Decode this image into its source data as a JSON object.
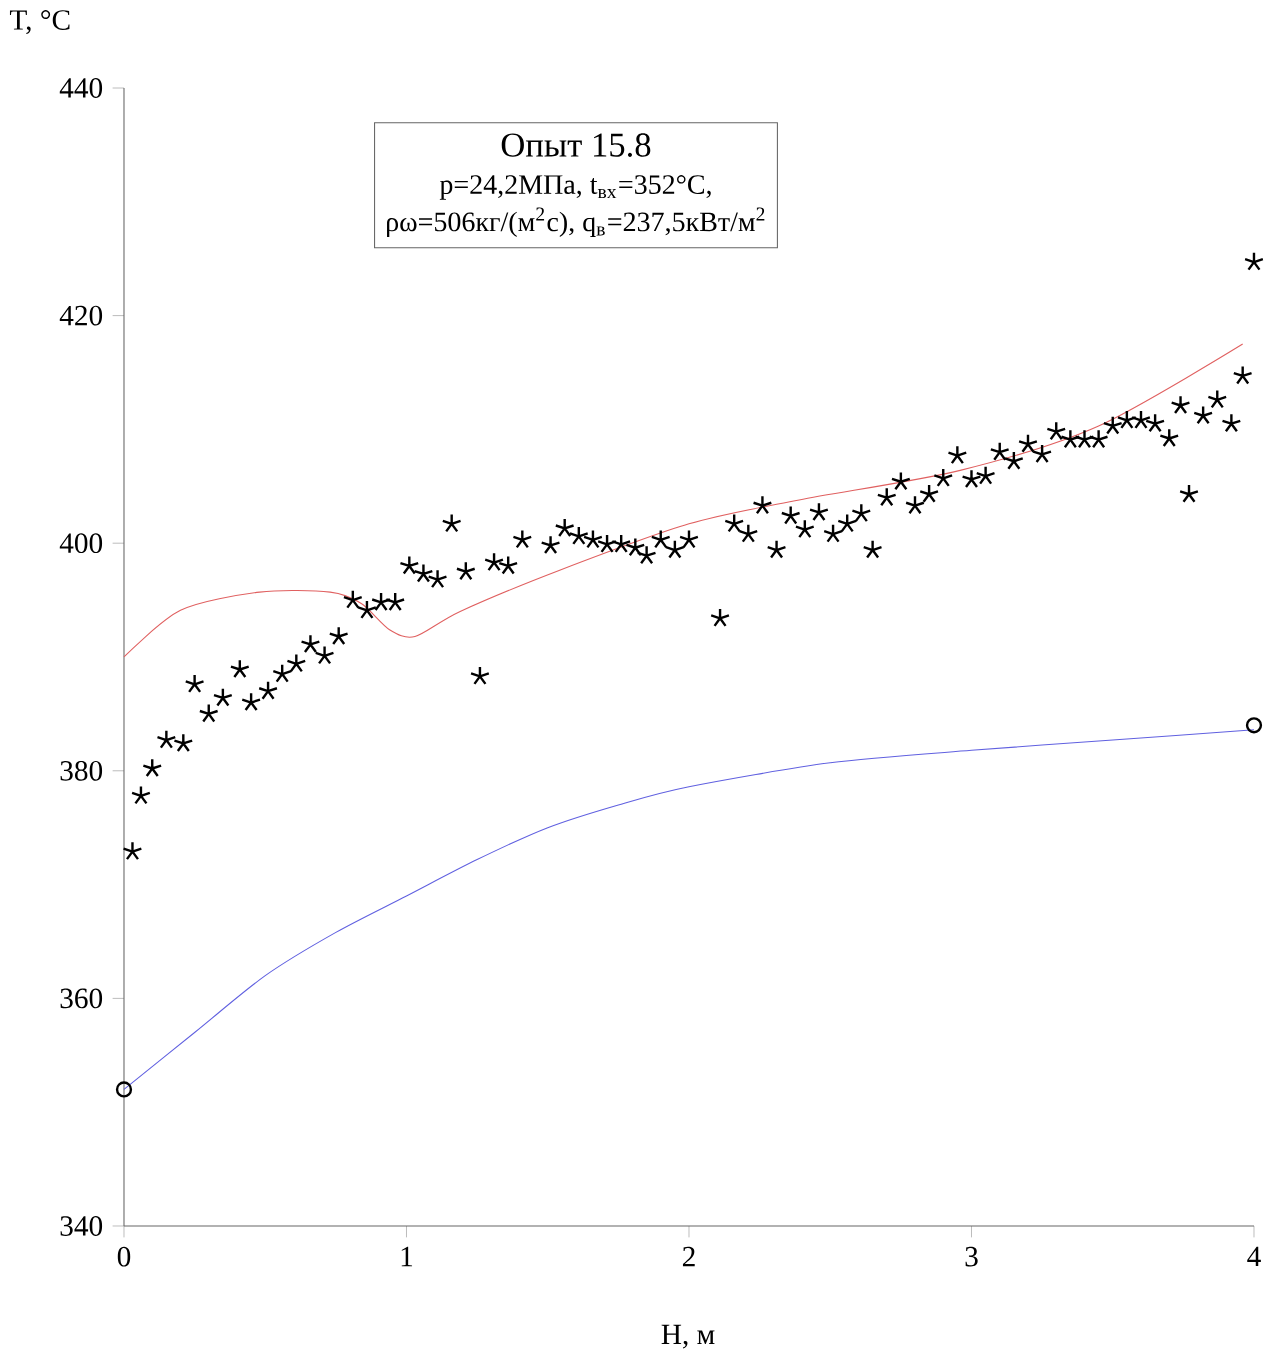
{
  "chart_data": {
    "type": "scatter",
    "title": "Опыт 15.8",
    "annotations": [
      "p=24,2МПа, t$_{вх}$=352°C,",
      "ρω=506кг/(м$^{2}$с), q$_{в}$=237,5кВт/м$^{2}$"
    ],
    "xlabel": "H, м",
    "ylabel": "T, °C",
    "xlim": [
      0,
      4
    ],
    "ylim": [
      340,
      440
    ],
    "xticks": [
      0,
      1,
      2,
      3,
      4
    ],
    "yticks": [
      340,
      360,
      380,
      400,
      420,
      440
    ],
    "series": [
      {
        "marker": "cross",
        "color": "#000000",
        "x": [
          0.03,
          0.06,
          0.1,
          0.15,
          0.21,
          0.25,
          0.3,
          0.35,
          0.41,
          0.45,
          0.51,
          0.56,
          0.61,
          0.66,
          0.71,
          0.76,
          0.81,
          0.86,
          0.91,
          0.96,
          1.01,
          1.06,
          1.11,
          1.16,
          1.21,
          1.26,
          1.31,
          1.36,
          1.41,
          1.51,
          1.56,
          1.61,
          1.66,
          1.71,
          1.76,
          1.81,
          1.85,
          1.9,
          1.95,
          2.0,
          2.11,
          2.16,
          2.21,
          2.26,
          2.31,
          2.36,
          2.41,
          2.46,
          2.51,
          2.56,
          2.61,
          2.65,
          2.7,
          2.75,
          2.8,
          2.85,
          2.9,
          2.95,
          3.0,
          3.05,
          3.1,
          3.15,
          3.2,
          3.25,
          3.3,
          3.35,
          3.4,
          3.45,
          3.5,
          3.55,
          3.6,
          3.65,
          3.7,
          3.74,
          3.77,
          3.82,
          3.87,
          3.92,
          3.96,
          4.0
        ],
        "values": [
          372.9,
          377.8,
          380.2,
          382.7,
          382.4,
          387.6,
          385.0,
          386.4,
          388.9,
          386.0,
          387.0,
          388.5,
          389.4,
          391.1,
          390.1,
          391.8,
          395.0,
          394.1,
          394.8,
          394.8,
          398.0,
          397.3,
          396.8,
          401.7,
          397.5,
          388.3,
          398.3,
          398.0,
          400.3,
          399.8,
          401.3,
          400.6,
          400.3,
          399.9,
          399.9,
          399.6,
          398.9,
          400.3,
          399.4,
          400.3,
          393.4,
          401.7,
          400.8,
          403.3,
          399.4,
          402.4,
          401.2,
          402.7,
          400.8,
          401.7,
          402.6,
          399.4,
          404.0,
          405.4,
          403.3,
          404.3,
          405.7,
          407.7,
          405.6,
          405.9,
          408.0,
          407.2,
          408.7,
          407.8,
          409.8,
          409.1,
          409.1,
          409.1,
          410.3,
          410.8,
          410.8,
          410.5,
          409.2,
          412.1,
          404.3,
          411.2,
          412.6,
          410.5,
          414.7,
          424.7
        ]
      },
      {
        "type": "line",
        "marker": "none",
        "color": "#e06060",
        "x": [
          0,
          0.2,
          0.48,
          0.73,
          0.84,
          0.94,
          1.03,
          1.19,
          1.54,
          2.0,
          2.39,
          2.96,
          3.45,
          3.96
        ],
        "values": [
          390,
          394.1,
          395.7,
          395.7,
          394.7,
          392.4,
          391.8,
          394,
          397.6,
          401.7,
          403.8,
          406.4,
          410.3,
          417.5
        ]
      },
      {
        "type": "line",
        "marker": "none",
        "color": "#6060e0",
        "x": [
          0,
          0.25,
          0.5,
          0.75,
          1,
          1.25,
          1.5,
          1.75,
          2,
          2.5,
          3,
          3.5,
          4
        ],
        "values": [
          352,
          357,
          362,
          365.8,
          369,
          372.2,
          375,
          377,
          378.6,
          380.7,
          381.8,
          382.7,
          383.6
        ]
      },
      {
        "marker": "circle",
        "color": "#000000",
        "x": [
          0,
          4
        ],
        "values": [
          352,
          384
        ]
      }
    ]
  }
}
